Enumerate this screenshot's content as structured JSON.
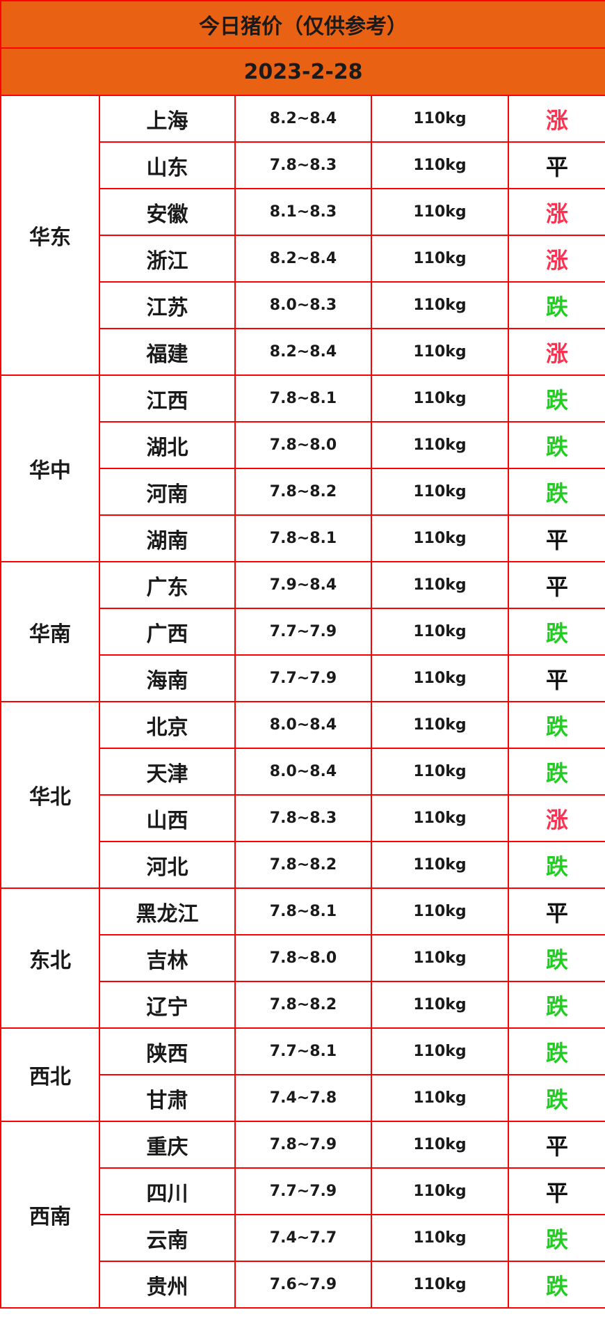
{
  "title": "今日猪价（仅供参考）",
  "date": "2023-2-28",
  "colors": {
    "header_bg": "#e96214",
    "border": "#ff0000",
    "涨": "#ff3050",
    "跌": "#22cc22",
    "平": "#111111"
  },
  "regions": [
    {
      "name": "华东",
      "rows": [
        {
          "province": "上海",
          "price": "8.2~8.4",
          "weight": "110kg",
          "trend": "涨"
        },
        {
          "province": "山东",
          "price": "7.8~8.3",
          "weight": "110kg",
          "trend": "平"
        },
        {
          "province": "安徽",
          "price": "8.1~8.3",
          "weight": "110kg",
          "trend": "涨"
        },
        {
          "province": "浙江",
          "price": "8.2~8.4",
          "weight": "110kg",
          "trend": "涨"
        },
        {
          "province": "江苏",
          "price": "8.0~8.3",
          "weight": "110kg",
          "trend": "跌"
        },
        {
          "province": "福建",
          "price": "8.2~8.4",
          "weight": "110kg",
          "trend": "涨"
        }
      ]
    },
    {
      "name": "华中",
      "rows": [
        {
          "province": "江西",
          "price": "7.8~8.1",
          "weight": "110kg",
          "trend": "跌"
        },
        {
          "province": "湖北",
          "price": "7.8~8.0",
          "weight": "110kg",
          "trend": "跌"
        },
        {
          "province": "河南",
          "price": "7.8~8.2",
          "weight": "110kg",
          "trend": "跌"
        },
        {
          "province": "湖南",
          "price": "7.8~8.1",
          "weight": "110kg",
          "trend": "平"
        }
      ]
    },
    {
      "name": "华南",
      "rows": [
        {
          "province": "广东",
          "price": "7.9~8.4",
          "weight": "110kg",
          "trend": "平"
        },
        {
          "province": "广西",
          "price": "7.7~7.9",
          "weight": "110kg",
          "trend": "跌"
        },
        {
          "province": "海南",
          "price": "7.7~7.9",
          "weight": "110kg",
          "trend": "平"
        }
      ]
    },
    {
      "name": "华北",
      "rows": [
        {
          "province": "北京",
          "price": "8.0~8.4",
          "weight": "110kg",
          "trend": "跌"
        },
        {
          "province": "天津",
          "price": "8.0~8.4",
          "weight": "110kg",
          "trend": "跌"
        },
        {
          "province": "山西",
          "price": "7.8~8.3",
          "weight": "110kg",
          "trend": "涨"
        },
        {
          "province": "河北",
          "price": "7.8~8.2",
          "weight": "110kg",
          "trend": "跌"
        }
      ]
    },
    {
      "name": "东北",
      "rows": [
        {
          "province": "黑龙江",
          "price": "7.8~8.1",
          "weight": "110kg",
          "trend": "平"
        },
        {
          "province": "吉林",
          "price": "7.8~8.0",
          "weight": "110kg",
          "trend": "跌"
        },
        {
          "province": "辽宁",
          "price": "7.8~8.2",
          "weight": "110kg",
          "trend": "跌"
        }
      ]
    },
    {
      "name": "西北",
      "rows": [
        {
          "province": "陕西",
          "price": "7.7~8.1",
          "weight": "110kg",
          "trend": "跌"
        },
        {
          "province": "甘肃",
          "price": "7.4~7.8",
          "weight": "110kg",
          "trend": "跌"
        }
      ]
    },
    {
      "name": "西南",
      "rows": [
        {
          "province": "重庆",
          "price": "7.8~7.9",
          "weight": "110kg",
          "trend": "平"
        },
        {
          "province": "四川",
          "price": "7.7~7.9",
          "weight": "110kg",
          "trend": "平"
        },
        {
          "province": "云南",
          "price": "7.4~7.7",
          "weight": "110kg",
          "trend": "跌"
        },
        {
          "province": "贵州",
          "price": "7.6~7.9",
          "weight": "110kg",
          "trend": "跌"
        }
      ]
    }
  ]
}
